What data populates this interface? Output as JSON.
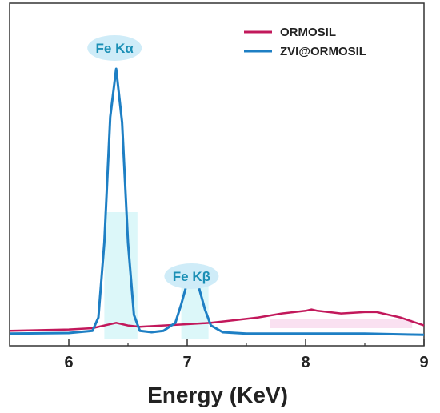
{
  "chart_data": {
    "type": "line",
    "title": "",
    "xlabel": "Energy (KeV)",
    "ylabel": "",
    "xlim": [
      5.5,
      9
    ],
    "ylim": [
      0,
      1.1
    ],
    "xticks": [
      6,
      7,
      8,
      9
    ],
    "yticks_visible": false,
    "grid": false,
    "legend_position": "top-right",
    "series": [
      {
        "name": "ORMOSIL",
        "color": "#c2185b",
        "x": [
          5.5,
          6.0,
          6.2,
          6.3,
          6.4,
          6.5,
          6.6,
          6.8,
          7.0,
          7.2,
          7.4,
          7.6,
          7.8,
          8.0,
          8.05,
          8.1,
          8.3,
          8.5,
          8.6,
          8.8,
          9.0
        ],
        "y": [
          0.02,
          0.025,
          0.03,
          0.04,
          0.05,
          0.04,
          0.035,
          0.04,
          0.045,
          0.05,
          0.06,
          0.07,
          0.085,
          0.095,
          0.1,
          0.095,
          0.085,
          0.09,
          0.09,
          0.07,
          0.04
        ]
      },
      {
        "name": "ZVI@ORMOSIL",
        "color": "#1e7fc4",
        "x": [
          5.5,
          6.0,
          6.2,
          6.25,
          6.3,
          6.35,
          6.4,
          6.45,
          6.5,
          6.55,
          6.6,
          6.7,
          6.8,
          6.9,
          6.95,
          7.0,
          7.05,
          7.1,
          7.15,
          7.2,
          7.3,
          7.5,
          8.0,
          8.5,
          9.0
        ],
        "y": [
          0.01,
          0.012,
          0.02,
          0.07,
          0.35,
          0.82,
          1.0,
          0.8,
          0.35,
          0.08,
          0.02,
          0.015,
          0.02,
          0.05,
          0.12,
          0.2,
          0.22,
          0.18,
          0.1,
          0.04,
          0.015,
          0.01,
          0.01,
          0.01,
          0.005
        ]
      }
    ],
    "annotations": [
      {
        "label": "Fe Kα",
        "x": 6.4
      },
      {
        "label": "Fe Kβ",
        "x": 7.05
      }
    ]
  }
}
